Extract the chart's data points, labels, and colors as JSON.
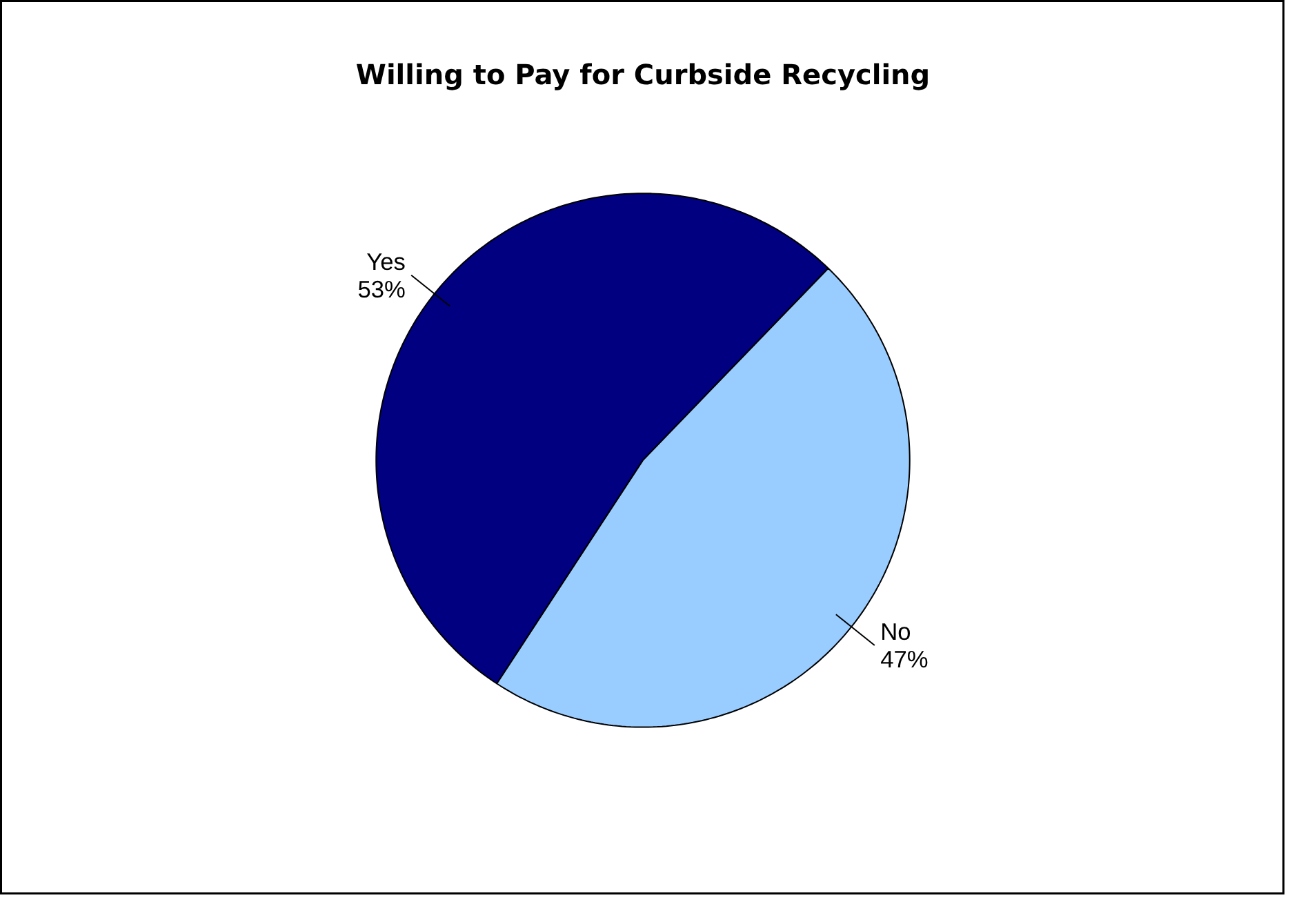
{
  "chart_data": {
    "type": "pie",
    "title": "Willing to Pay for Curbside Recycling",
    "categories": [
      "Yes",
      "No"
    ],
    "values": [
      53,
      47
    ],
    "colors": [
      "#000080",
      "#99ccff"
    ],
    "value_labels": [
      "53%",
      "47%"
    ]
  }
}
